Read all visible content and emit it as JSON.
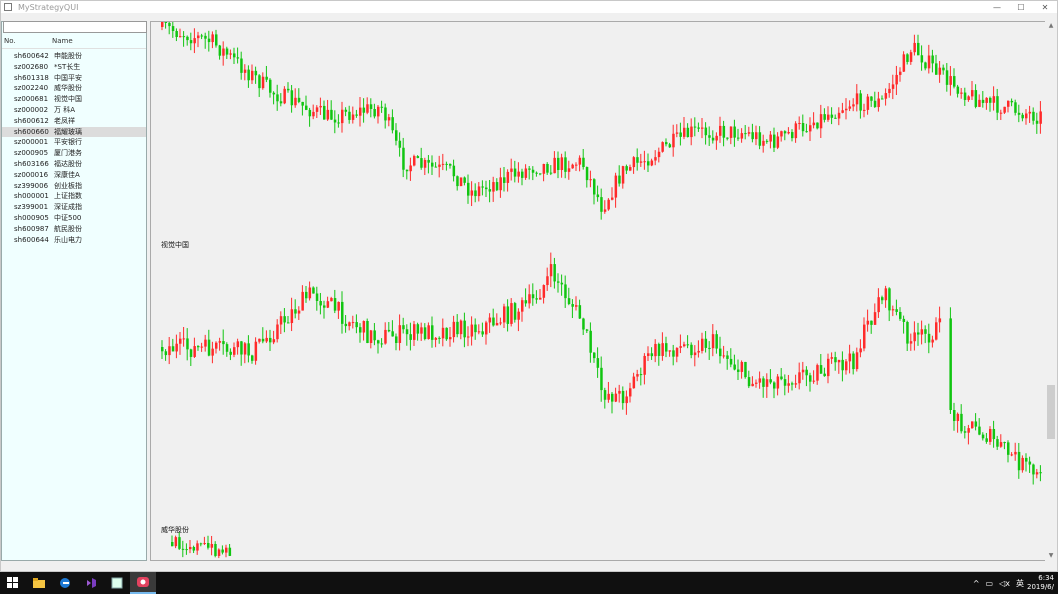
{
  "window": {
    "title": "MyStrategyQUI"
  },
  "title_controls": {
    "minimize": "—",
    "maximize": "☐",
    "close": "✕"
  },
  "left_panel": {
    "filter_value": "",
    "columns": [
      "No.",
      "Name"
    ],
    "rows": [
      {
        "code": "sh600642",
        "name": "申能股份"
      },
      {
        "code": "sz002680",
        "name": "*ST长生"
      },
      {
        "code": "sh601318",
        "name": "中国平安"
      },
      {
        "code": "sz002240",
        "name": "威华股份"
      },
      {
        "code": "sz000681",
        "name": "视觉中国"
      },
      {
        "code": "sz000002",
        "name": "万 科A"
      },
      {
        "code": "sh600612",
        "name": "老凤祥"
      },
      {
        "code": "sh600660",
        "name": "福耀玻璃"
      },
      {
        "code": "sz000001",
        "name": "平安银行"
      },
      {
        "code": "sz000905",
        "name": "厦门港务"
      },
      {
        "code": "sh603166",
        "name": "福达股份"
      },
      {
        "code": "sz000016",
        "name": "深康佳A"
      },
      {
        "code": "sz399006",
        "name": "创业板指"
      },
      {
        "code": "sh000001",
        "name": "上证指数"
      },
      {
        "code": "sz399001",
        "name": "深证成指"
      },
      {
        "code": "sh000905",
        "name": "中证500"
      },
      {
        "code": "sh600987",
        "name": "航民股份"
      },
      {
        "code": "sh600644",
        "name": "乐山电力"
      }
    ],
    "selected_index": 7
  },
  "charts": {
    "chart2_title": "视觉中国",
    "chart3_title": "威华股份",
    "up_color": "#ff2a2a",
    "down_color": "#11c511"
  },
  "scrollbar": {
    "up": "▲",
    "down": "▼"
  },
  "taskbar": {
    "icons": [
      "windows-start",
      "file-explorer",
      "edge-browser",
      "visual-studio",
      "app-window",
      "recorder"
    ],
    "tray_icons": [
      "^",
      "▭",
      "◁x",
      "英"
    ],
    "time": "6:34",
    "date": "2019/6/"
  }
}
